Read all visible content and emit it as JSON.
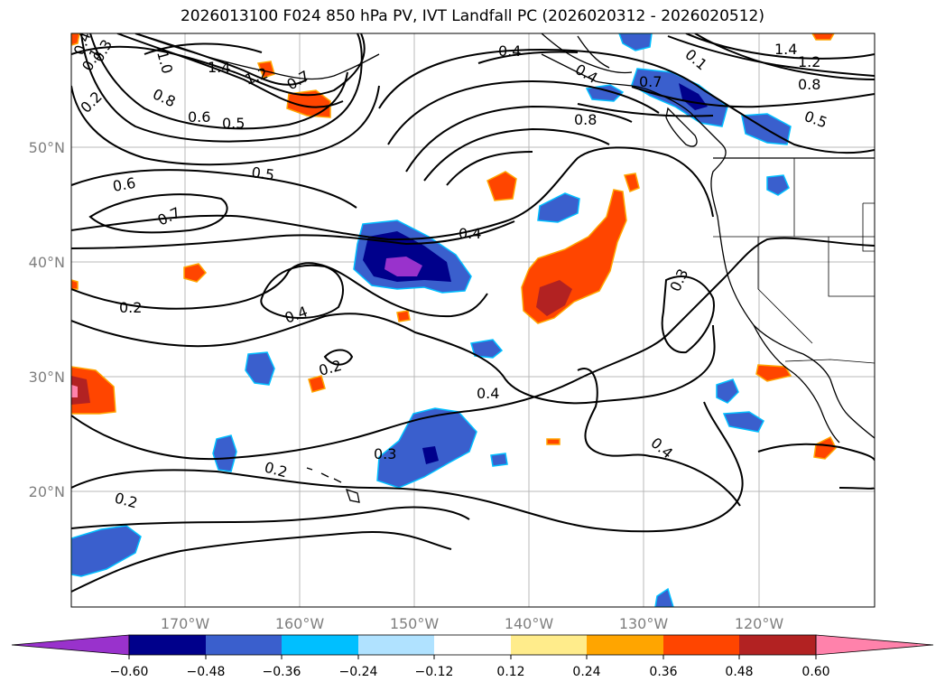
{
  "title": "2026013100 F024 850 hPa PV, IVT Landfall PC (2026020312 - 2026020512)",
  "map": {
    "lat_labels": [
      "50°N",
      "40°N",
      "30°N",
      "20°N"
    ],
    "lon_labels": [
      "170°W",
      "160°W",
      "150°W",
      "140°W",
      "130°W",
      "120°W"
    ],
    "contour_labels": [
      {
        "text": "0.4"
      },
      {
        "text": "0.2"
      },
      {
        "text": "0.1"
      },
      {
        "text": "1.0"
      },
      {
        "text": "0.3"
      },
      {
        "text": "1.4"
      },
      {
        "text": "1.2"
      },
      {
        "text": "0.8"
      },
      {
        "text": "0.6"
      },
      {
        "text": "0.5"
      },
      {
        "text": "0.7"
      },
      {
        "text": "0.6"
      },
      {
        "text": "0.5"
      },
      {
        "text": "0.7"
      },
      {
        "text": "0.4"
      },
      {
        "text": "0.4"
      },
      {
        "text": "0.7"
      },
      {
        "text": "0.8"
      },
      {
        "text": "1.4"
      },
      {
        "text": "1.2"
      },
      {
        "text": "0.8"
      },
      {
        "text": "0.5"
      },
      {
        "text": "0.1"
      },
      {
        "text": "0.4"
      },
      {
        "text": "0.2"
      },
      {
        "text": "0.2"
      },
      {
        "text": "0.3"
      },
      {
        "text": "0.4"
      },
      {
        "text": "0.3"
      },
      {
        "text": "0.4"
      },
      {
        "text": "0.2"
      },
      {
        "text": "0.2"
      }
    ]
  },
  "colorbar": {
    "ticks": [
      "−0.60",
      "−0.48",
      "−0.36",
      "−0.24",
      "−0.12",
      "0.12",
      "0.24",
      "0.36",
      "0.48",
      "0.60"
    ],
    "colors": [
      "#9932cc",
      "#00008b",
      "#3a5fcd",
      "#00bfff",
      "#b0e2ff",
      "#ffffff",
      "#ffec8b",
      "#ffa500",
      "#ff4500",
      "#b22222",
      "#ff82ab"
    ]
  }
}
